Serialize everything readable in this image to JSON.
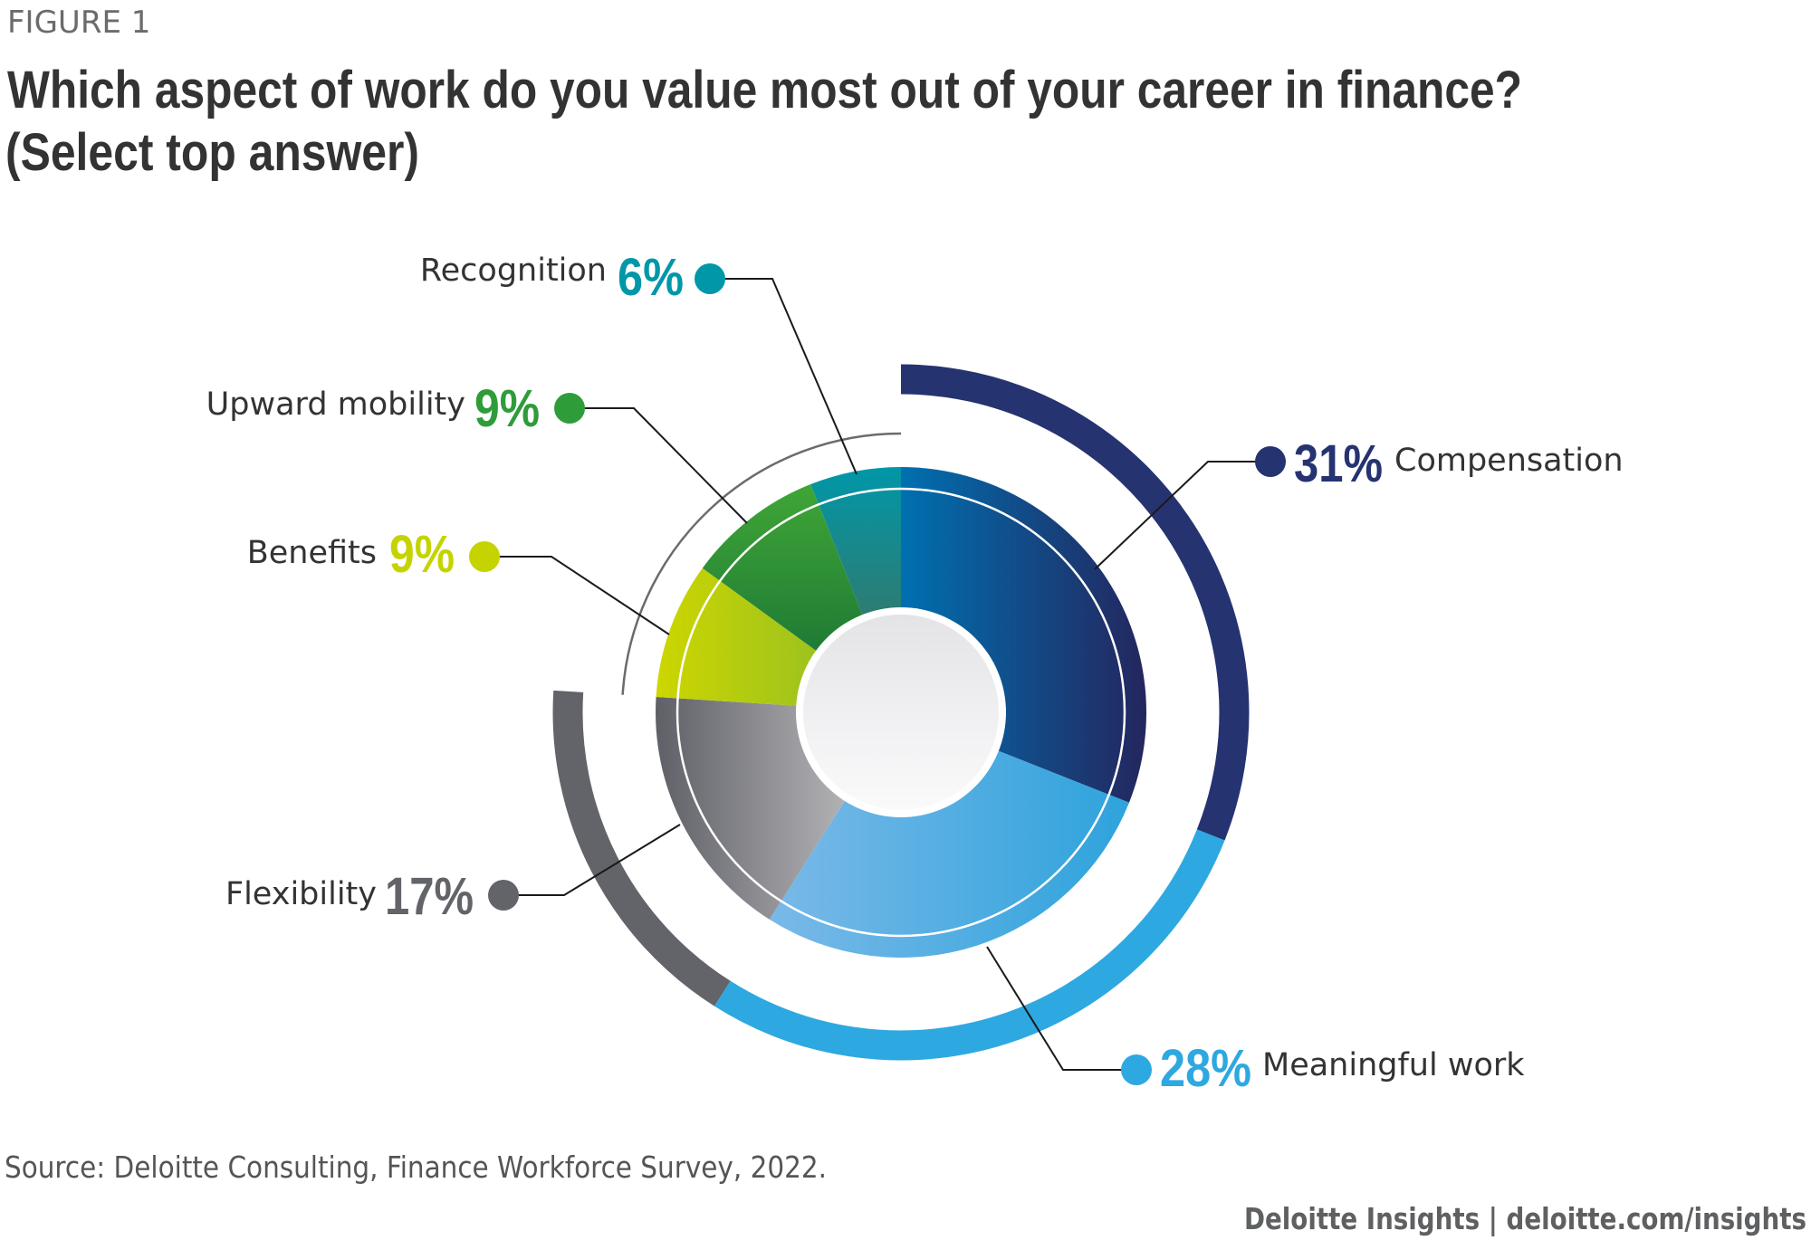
{
  "figure_label": "FIGURE 1",
  "title_line1": "Which aspect of work do you value most out of your career in finance?",
  "title_line2": "(Select top answer)",
  "source": "Source: Deloitte Consulting, Finance Workforce Survey, 2022.",
  "footer": "Deloitte Insights | deloitte.com/insights",
  "chart_data": {
    "type": "pie",
    "title": "Which aspect of work do you value most out of your career in finance? (Select top answer)",
    "unit": "%",
    "categories": [
      "Compensation",
      "Meaningful work",
      "Flexibility",
      "Benefits",
      "Upward mobility",
      "Recognition"
    ],
    "values": [
      31,
      28,
      17,
      9,
      9,
      6
    ],
    "labels": [
      "31%",
      "28%",
      "17%",
      "9%",
      "9%",
      "6%"
    ],
    "colors": [
      "#253371",
      "#2ea8e0",
      "#62646a",
      "#c5d400",
      "#2f9c3a",
      "#0097a9"
    ],
    "legend": "none (callout labels)"
  }
}
